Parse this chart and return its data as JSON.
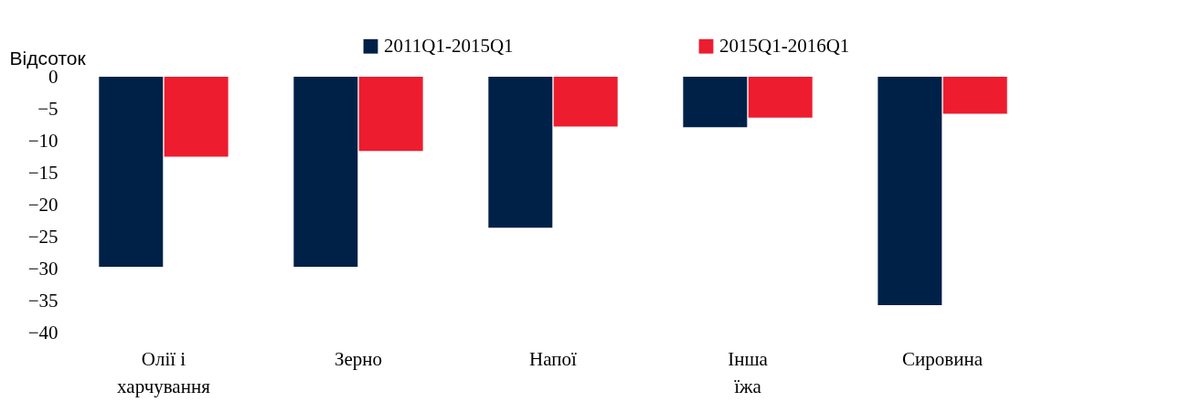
{
  "chart_data": {
    "type": "bar",
    "ylabel": "Відсоток",
    "categories": [
      "Олії і\nхарчування",
      "Зерно",
      "Напої",
      "Інша\nїжа",
      "Сировина"
    ],
    "series": [
      {
        "name": "2011Q1-2015Q1",
        "color": "#002147",
        "values": [
          -29.7,
          -29.7,
          -23.6,
          -7.9,
          -35.7
        ]
      },
      {
        "name": "2015Q1-2016Q1",
        "color": "#ed1c2e",
        "values": [
          -12.5,
          -11.6,
          -7.8,
          -6.4,
          -5.8
        ]
      }
    ],
    "ylim": [
      -40,
      0
    ],
    "yticks": [
      -40,
      -35,
      -30,
      -25,
      -20,
      -15,
      -10,
      -5,
      0
    ],
    "grid": false,
    "legend": "top"
  }
}
